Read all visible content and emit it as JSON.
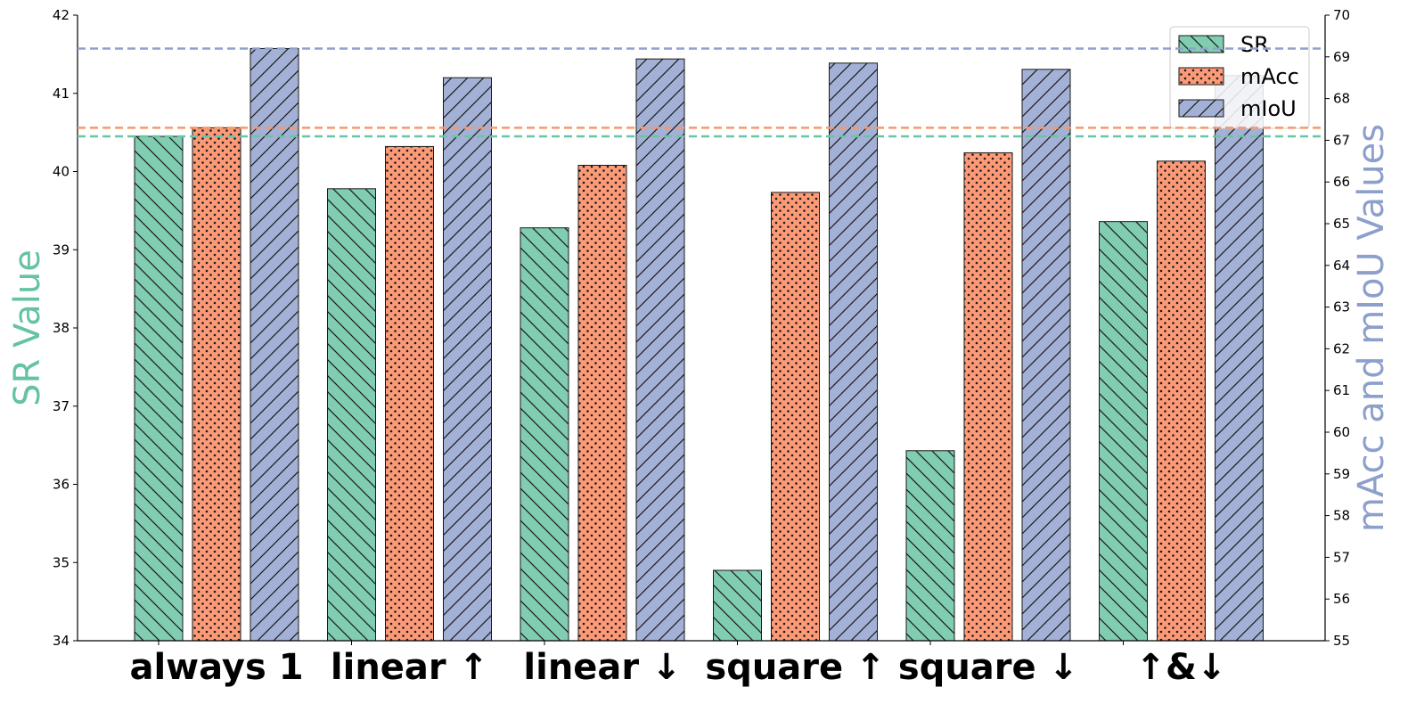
{
  "chart_data": {
    "type": "bar",
    "categories": [
      "always 1",
      "linear ↑",
      "linear ↓",
      "square ↑",
      "square ↓",
      "↑&↓"
    ],
    "series": [
      {
        "name": "SR",
        "axis": "left",
        "color": "#80cdb1",
        "hatch": "backslash",
        "values": [
          40.45,
          39.78,
          39.28,
          34.9,
          36.43,
          39.36
        ]
      },
      {
        "name": "mAcc",
        "axis": "right",
        "color": "#fc9a78",
        "hatch": "dots",
        "values": [
          67.3,
          66.85,
          66.4,
          65.75,
          66.7,
          66.5
        ]
      },
      {
        "name": "mIoU",
        "axis": "right",
        "color": "#a4b1d6",
        "hatch": "slash",
        "values": [
          69.2,
          68.5,
          68.95,
          68.85,
          68.7,
          68.55
        ]
      }
    ],
    "reference_lines": [
      {
        "series": "SR",
        "axis": "left",
        "value": 40.45,
        "color": "#6cc4a4"
      },
      {
        "series": "mAcc",
        "axis": "right",
        "value": 67.3,
        "color": "#f5996b"
      },
      {
        "series": "mIoU",
        "axis": "right",
        "value": 69.2,
        "color": "#8fa0d0"
      }
    ],
    "y_left": {
      "label": "SR Value",
      "label_color": "#66c2a5",
      "ylim": [
        34,
        42
      ],
      "ticks": [
        "34",
        "35",
        "36",
        "37",
        "38",
        "39",
        "40",
        "41",
        "42"
      ]
    },
    "y_right": {
      "label": "mAcc and mIoU Values",
      "label_color": "#8da0cb",
      "ylim": [
        55,
        70
      ],
      "ticks": [
        "55",
        "56",
        "57",
        "58",
        "59",
        "60",
        "61",
        "62",
        "63",
        "64",
        "65",
        "66",
        "67",
        "68",
        "69",
        "70"
      ]
    },
    "legend": {
      "placement": "top-right",
      "entries": [
        "SR",
        "mAcc",
        "mIoU"
      ]
    },
    "grid": false
  }
}
